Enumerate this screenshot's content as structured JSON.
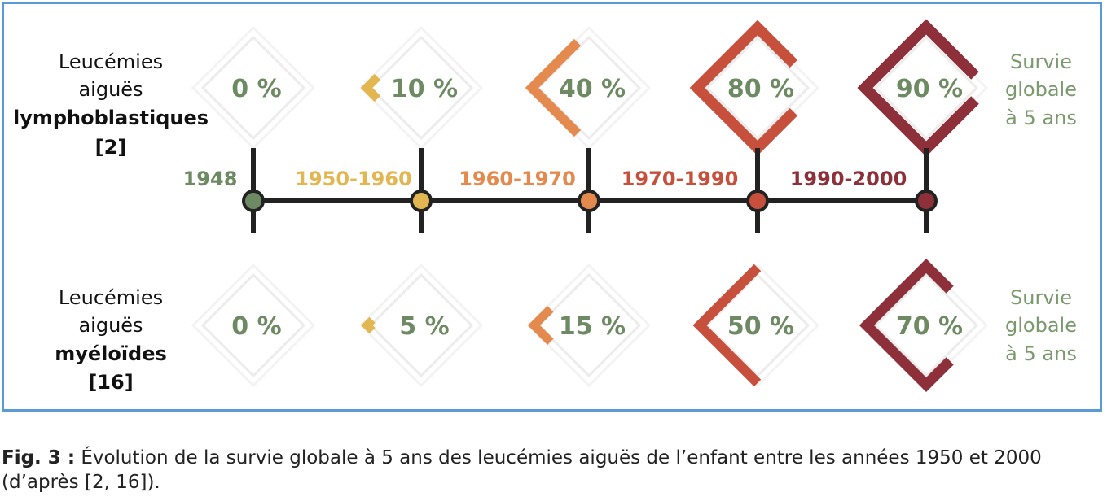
{
  "colors": {
    "border": "#5b9bd5",
    "axis": "#222222",
    "value_text": "#6d8a63",
    "survie_text": "#7a9a6d",
    "periods": [
      "#6d8a63",
      "#e2b650",
      "#e48a4e",
      "#c6503c",
      "#8e3039"
    ]
  },
  "chart_data": {
    "type": "timeline",
    "periods": [
      "1948",
      "1950-1960",
      "1960-1970",
      "1970-1990",
      "1990-2000"
    ],
    "series": [
      {
        "label_lines": [
          "Leucémies",
          "aiguës",
          "lymphoblastiques",
          "[2]"
        ],
        "values": [
          0,
          10,
          40,
          80,
          90
        ],
        "value_labels": [
          "0 %",
          "10 %",
          "40 %",
          "80 %",
          "90 %"
        ],
        "side_label_lines": [
          "Survie",
          "globale",
          "à 5 ans"
        ]
      },
      {
        "label_lines": [
          "Leucémies",
          "aiguës",
          "myéloïdes",
          "[16]"
        ],
        "values": [
          0,
          5,
          15,
          50,
          70
        ],
        "value_labels": [
          "0 %",
          "5 %",
          "15 %",
          "50 %",
          "70 %"
        ],
        "side_label_lines": [
          "Survie",
          "globale",
          "à 5 ans"
        ]
      }
    ]
  },
  "caption": {
    "prefix": "Fig. 3 :",
    "text": " Évolution de la survie globale à 5 ans des leucémies aiguës de l’enfant entre les années 1950 et 2000 (d’après [2, 16])."
  }
}
